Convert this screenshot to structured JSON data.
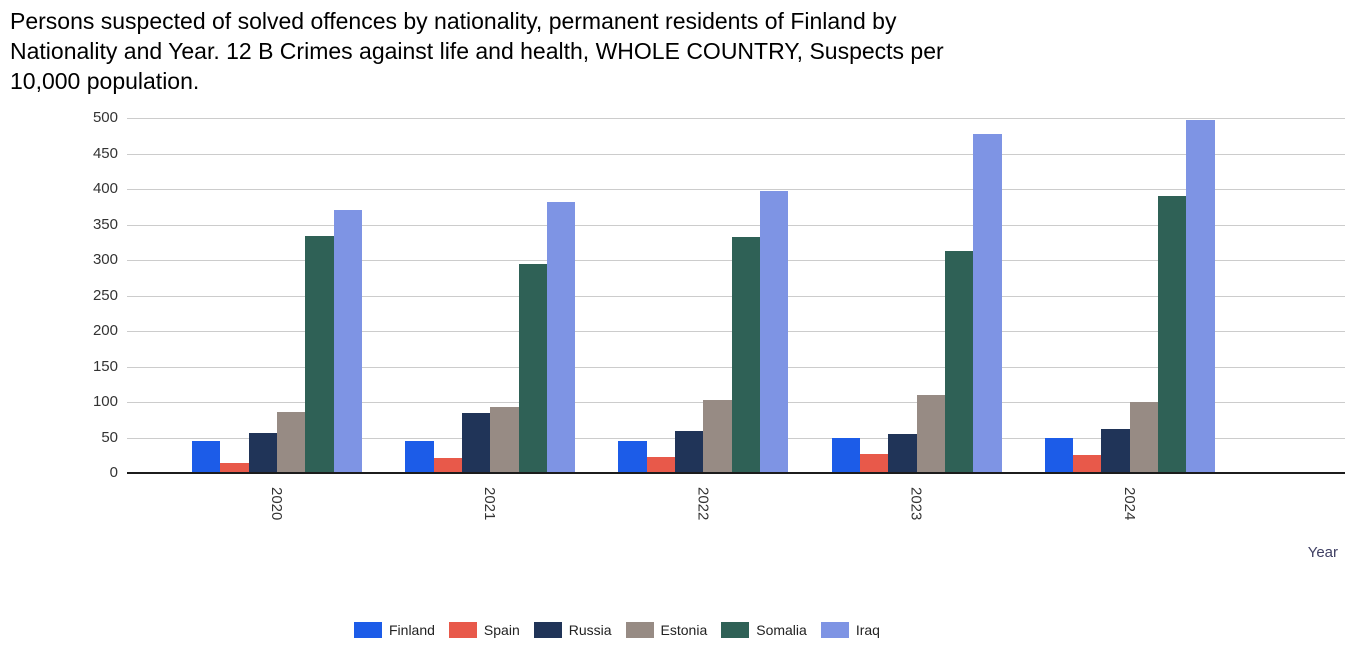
{
  "title": {
    "full": "Persons suspected of solved offences by nationality, permanent residents of Finland by Nationality and Year. 12 B Crimes against life and health, WHOLE COUNTRY, Suspects per 10,000 population.",
    "lines": [
      "Persons suspected of solved offences by nationality, permanent residents of Finland by",
      "Nationality and Year. 12 B Crimes against life and health, WHOLE COUNTRY, Suspects per",
      "10,000 population."
    ]
  },
  "chart_data": {
    "type": "bar",
    "title": "Persons suspected of solved offences by nationality, permanent residents of Finland by Nationality and Year. 12 B Crimes against life and health, WHOLE COUNTRY, Suspects per 10,000 population.",
    "categories": [
      "2020",
      "2021",
      "2022",
      "2023",
      "2024"
    ],
    "series": [
      {
        "name": "Finland",
        "color": "#1c5ce8",
        "values": [
          45,
          45,
          45,
          49,
          49
        ]
      },
      {
        "name": "Spain",
        "color": "#e8594a",
        "values": [
          14,
          21,
          23,
          27,
          26
        ]
      },
      {
        "name": "Russia",
        "color": "#203458",
        "values": [
          57,
          84,
          59,
          55,
          62
        ]
      },
      {
        "name": "Estonia",
        "color": "#978b84",
        "values": [
          86,
          93,
          103,
          110,
          100
        ]
      },
      {
        "name": "Somalia",
        "color": "#2f6156",
        "values": [
          334,
          295,
          332,
          312,
          390
        ]
      },
      {
        "name": "Iraq",
        "color": "#7e94e4",
        "values": [
          371,
          382,
          397,
          478,
          497
        ]
      }
    ],
    "xlabel": "Year",
    "ylabel": "",
    "ylim": [
      0,
      500
    ],
    "yticks": [
      0,
      50,
      100,
      150,
      200,
      250,
      300,
      350,
      400,
      450,
      500
    ],
    "grid": true,
    "legend_position": "bottom",
    "axis_color": "#1c1c1c",
    "gridline_color": "#cccccc",
    "tick_label_color": "#333333"
  }
}
